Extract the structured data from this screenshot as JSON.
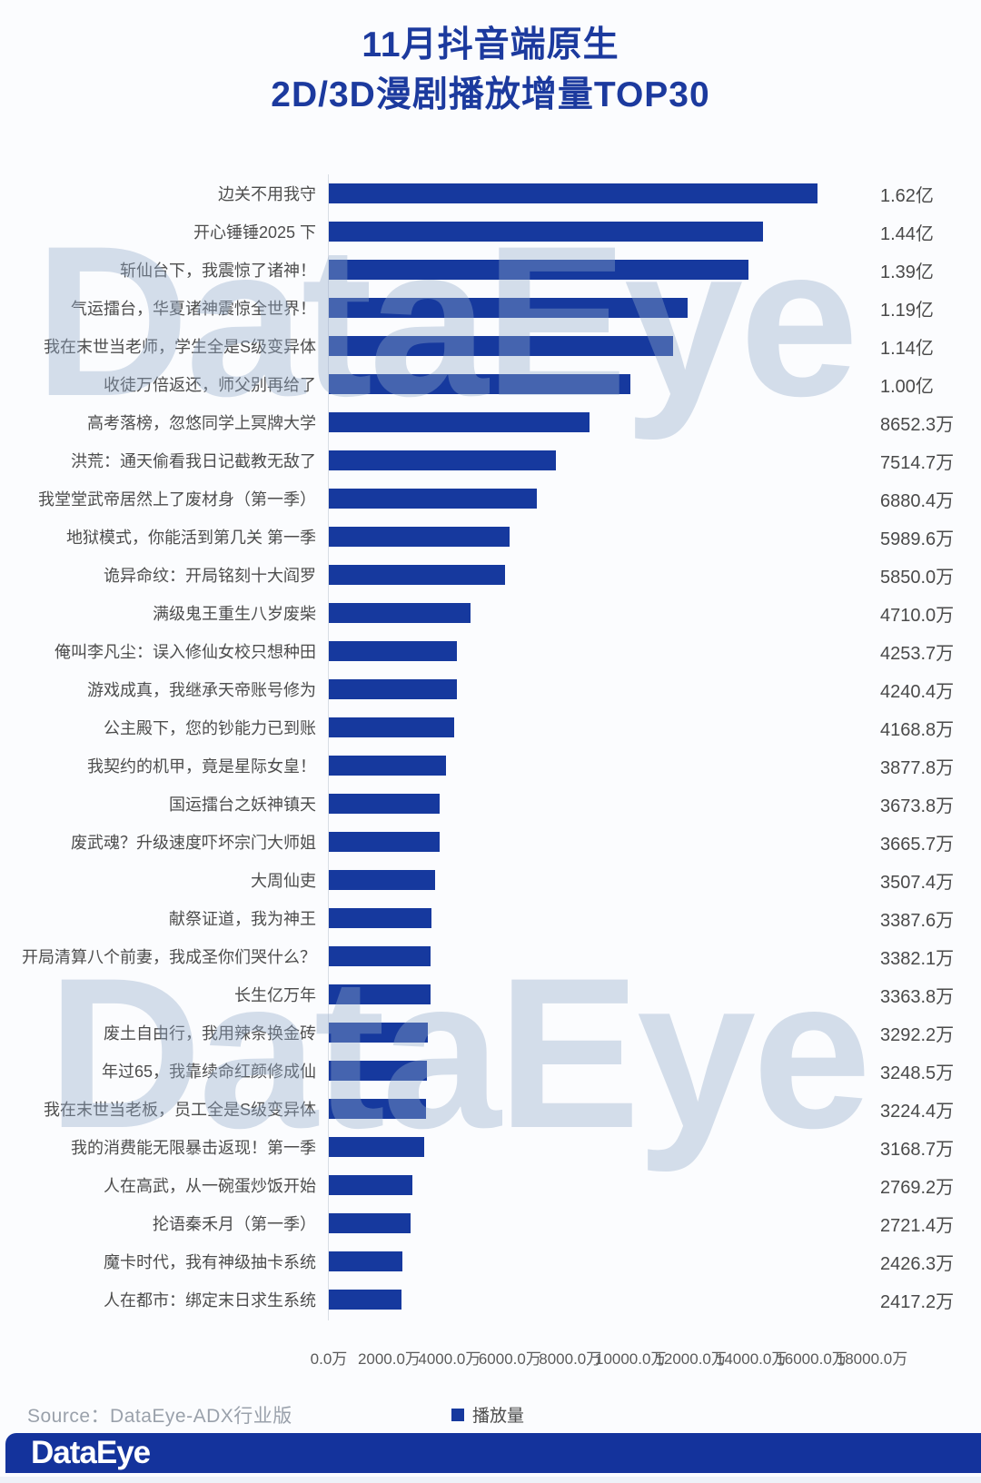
{
  "title": {
    "line1": "11月抖音端原生",
    "line2": "2D/3D漫剧播放增量TOP30"
  },
  "watermark_text": "DataEye",
  "source_credit": "Source：DataEye-ADX行业版",
  "legend": {
    "label": "播放量"
  },
  "footer": {
    "logo": "DataEye"
  },
  "colors": {
    "bar": "#16399e",
    "title": "#1c3a9e",
    "footer_bar": "#14339c",
    "label_text": "#4d4d4d",
    "value_text": "#4a4a4a",
    "watermark": "rgba(146,170,203,0.38)"
  },
  "chart_data": {
    "type": "bar",
    "orientation": "horizontal",
    "title": "11月抖音端原生 2D/3D漫剧播放增量TOP30",
    "unit": "万",
    "xlim": [
      0,
      18000
    ],
    "grid": false,
    "legend": [
      "播放量"
    ],
    "legend_position": "bottom",
    "x_ticks": [
      "0.0万",
      "2000.0万",
      "4000.0万",
      "6000.0万",
      "8000.0万",
      "10000.0万",
      "12000.0万",
      "14000.0万",
      "16000.0万",
      "18000.0万"
    ],
    "x_tick_values": [
      0,
      2000,
      4000,
      6000,
      8000,
      10000,
      12000,
      14000,
      16000,
      18000
    ],
    "categories": [
      "边关不用我守",
      "开心锤锤2025 下",
      "斩仙台下，我震惊了诸神！",
      "气运擂台，华夏诸神震惊全世界！",
      "我在末世当老师，学生全是S级变异体",
      "收徒万倍返还，师父别再给了",
      "高考落榜，忽悠同学上冥牌大学",
      "洪荒：通天偷看我日记截教无敌了",
      "我堂堂武帝居然上了废材身（第一季）",
      "地狱模式，你能活到第几关 第一季",
      "诡异命纹：开局铭刻十大阎罗",
      "满级鬼王重生八岁废柴",
      "俺叫李凡尘：误入修仙女校只想种田",
      "游戏成真，我继承天帝账号修为",
      "公主殿下，您的钞能力已到账",
      "我契约的机甲，竟是星际女皇！",
      "国运擂台之妖神镇天",
      "废武魂？升级速度吓坏宗门大师姐",
      "大周仙吏",
      "献祭证道，我为神王",
      "开局清算八个前妻，我成圣你们哭什么？",
      "长生亿万年",
      "废土自由行，我用辣条换金砖",
      "年过65，我靠续命红颜修成仙",
      "我在末世当老板，员工全是S级变异体",
      "我的消费能无限暴击返现！第一季",
      "人在高武，从一碗蛋炒饭开始",
      "抡语秦禾月（第一季）",
      "魔卡时代，我有神级抽卡系统",
      "人在都市：绑定末日求生系统"
    ],
    "values_wan": [
      16200,
      14400,
      13900,
      11900,
      11400,
      10000,
      8652.3,
      7514.7,
      6880.4,
      5989.6,
      5850.0,
      4710.0,
      4253.7,
      4240.4,
      4168.8,
      3877.8,
      3673.8,
      3665.7,
      3507.4,
      3387.6,
      3382.1,
      3363.8,
      3292.2,
      3248.5,
      3224.4,
      3168.7,
      2769.2,
      2721.4,
      2426.3,
      2417.2
    ],
    "value_labels": [
      "1.62亿",
      "1.44亿",
      "1.39亿",
      "1.19亿",
      "1.14亿",
      "1.00亿",
      "8652.3万",
      "7514.7万",
      "6880.4万",
      "5989.6万",
      "5850.0万",
      "4710.0万",
      "4253.7万",
      "4240.4万",
      "4168.8万",
      "3877.8万",
      "3673.8万",
      "3665.7万",
      "3507.4万",
      "3387.6万",
      "3382.1万",
      "3363.8万",
      "3292.2万",
      "3248.5万",
      "3224.4万",
      "3168.7万",
      "2769.2万",
      "2721.4万",
      "2426.3万",
      "2417.2万"
    ]
  }
}
